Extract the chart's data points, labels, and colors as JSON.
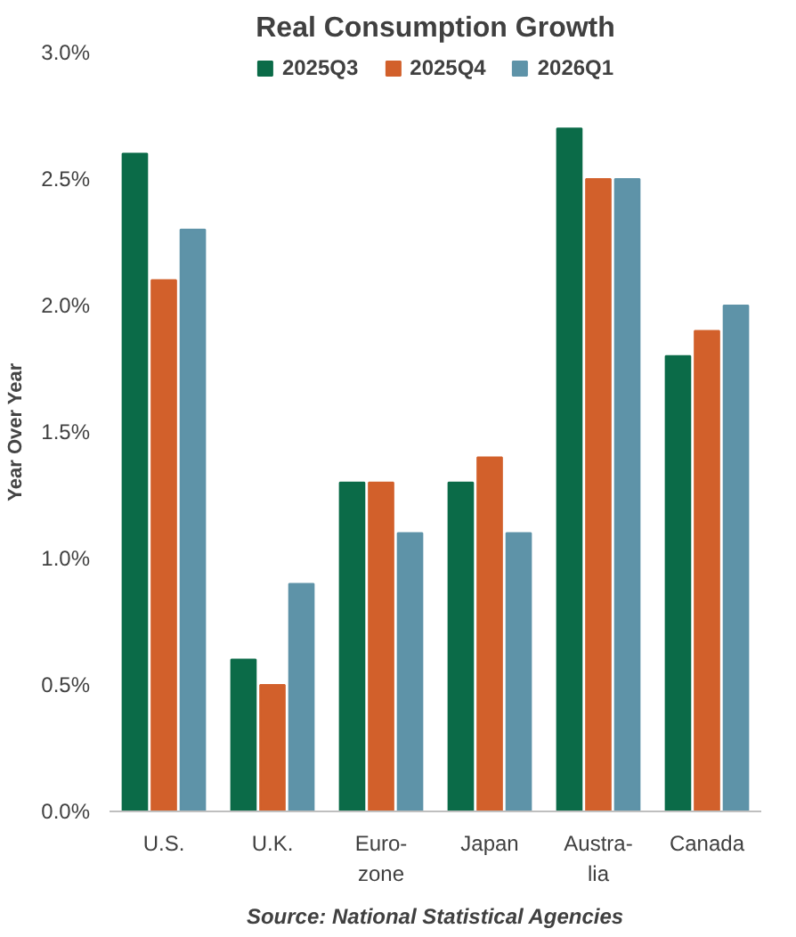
{
  "chart_data": {
    "type": "bar",
    "title": "Real Consumption Growth",
    "ylabel": "Year Over Year",
    "categories": [
      "U.S.",
      "U.K.",
      "Euro-\nzone",
      "Japan",
      "Austra-\nlia",
      "Canada"
    ],
    "series": [
      {
        "name": "2025Q3",
        "color": "#0b6b48",
        "values": [
          2.6,
          0.6,
          1.3,
          1.3,
          2.7,
          1.8
        ]
      },
      {
        "name": "2025Q4",
        "color": "#d2602b",
        "values": [
          2.1,
          0.5,
          1.3,
          1.4,
          2.5,
          1.9
        ]
      },
      {
        "name": "2026Q1",
        "color": "#5e93a8",
        "values": [
          2.3,
          0.9,
          1.1,
          1.1,
          2.5,
          2.0
        ]
      }
    ],
    "ylim": [
      0,
      3
    ],
    "yticks": [
      {
        "value": 0,
        "label": "0.0%"
      },
      {
        "value": 0.5,
        "label": "0.5%"
      },
      {
        "value": 1,
        "label": "1.0%"
      },
      {
        "value": 1.5,
        "label": "1.5%"
      },
      {
        "value": 2,
        "label": "2.0%"
      },
      {
        "value": 2.5,
        "label": "2.5%"
      },
      {
        "value": 3,
        "label": "3.0%"
      }
    ],
    "grid": false,
    "legend": "top",
    "annotations": [
      "Source: National Statistical Agencies"
    ]
  }
}
